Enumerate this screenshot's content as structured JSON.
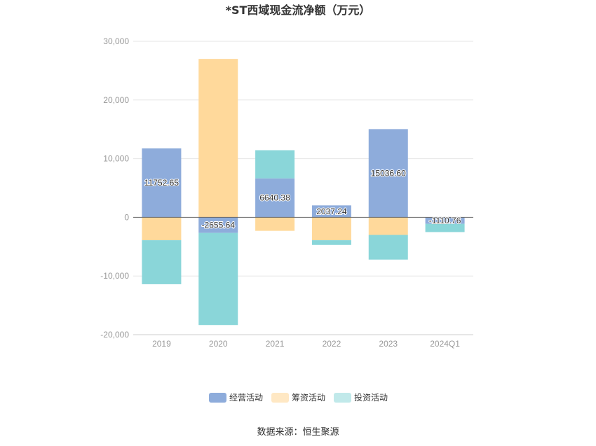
{
  "chart_data": {
    "type": "bar",
    "stacked": true,
    "title": "*ST西域现金流净额（万元）",
    "categories": [
      "2019",
      "2020",
      "2021",
      "2022",
      "2023",
      "2024Q1"
    ],
    "series": [
      {
        "name": "经营活动",
        "color": "#8eacdb",
        "values": [
          11752.65,
          -2655.64,
          6640.38,
          2037.24,
          15036.6,
          -1110.76
        ]
      },
      {
        "name": "筹资活动",
        "color": "#ffd99b",
        "values": [
          -3900,
          27000,
          -2300,
          -3900,
          -3000,
          0
        ]
      },
      {
        "name": "投资活动",
        "color": "#8ad6d9",
        "values": [
          -7500,
          -15700,
          4800,
          -800,
          -4200,
          -1400
        ]
      }
    ],
    "data_labels": {
      "series": "经营活动",
      "texts": [
        "11752.65",
        "-2655.64",
        "6640.38",
        "2037.24",
        "15036.60",
        "-1110.76"
      ]
    },
    "y_ticks": [
      30000,
      20000,
      10000,
      0,
      -10000,
      -20000
    ],
    "y_tick_labels": [
      "30,000",
      "20,000",
      "10,000",
      "0",
      "-10,000",
      "-20,000"
    ],
    "ylim": [
      -20000,
      30000
    ],
    "grid": true,
    "legend_position": "bottom"
  },
  "legend_swatch_colors": [
    "#8eacdb",
    "#ffe8c4",
    "#c1e9ea"
  ],
  "source_text": "数据来源：恒生聚源"
}
